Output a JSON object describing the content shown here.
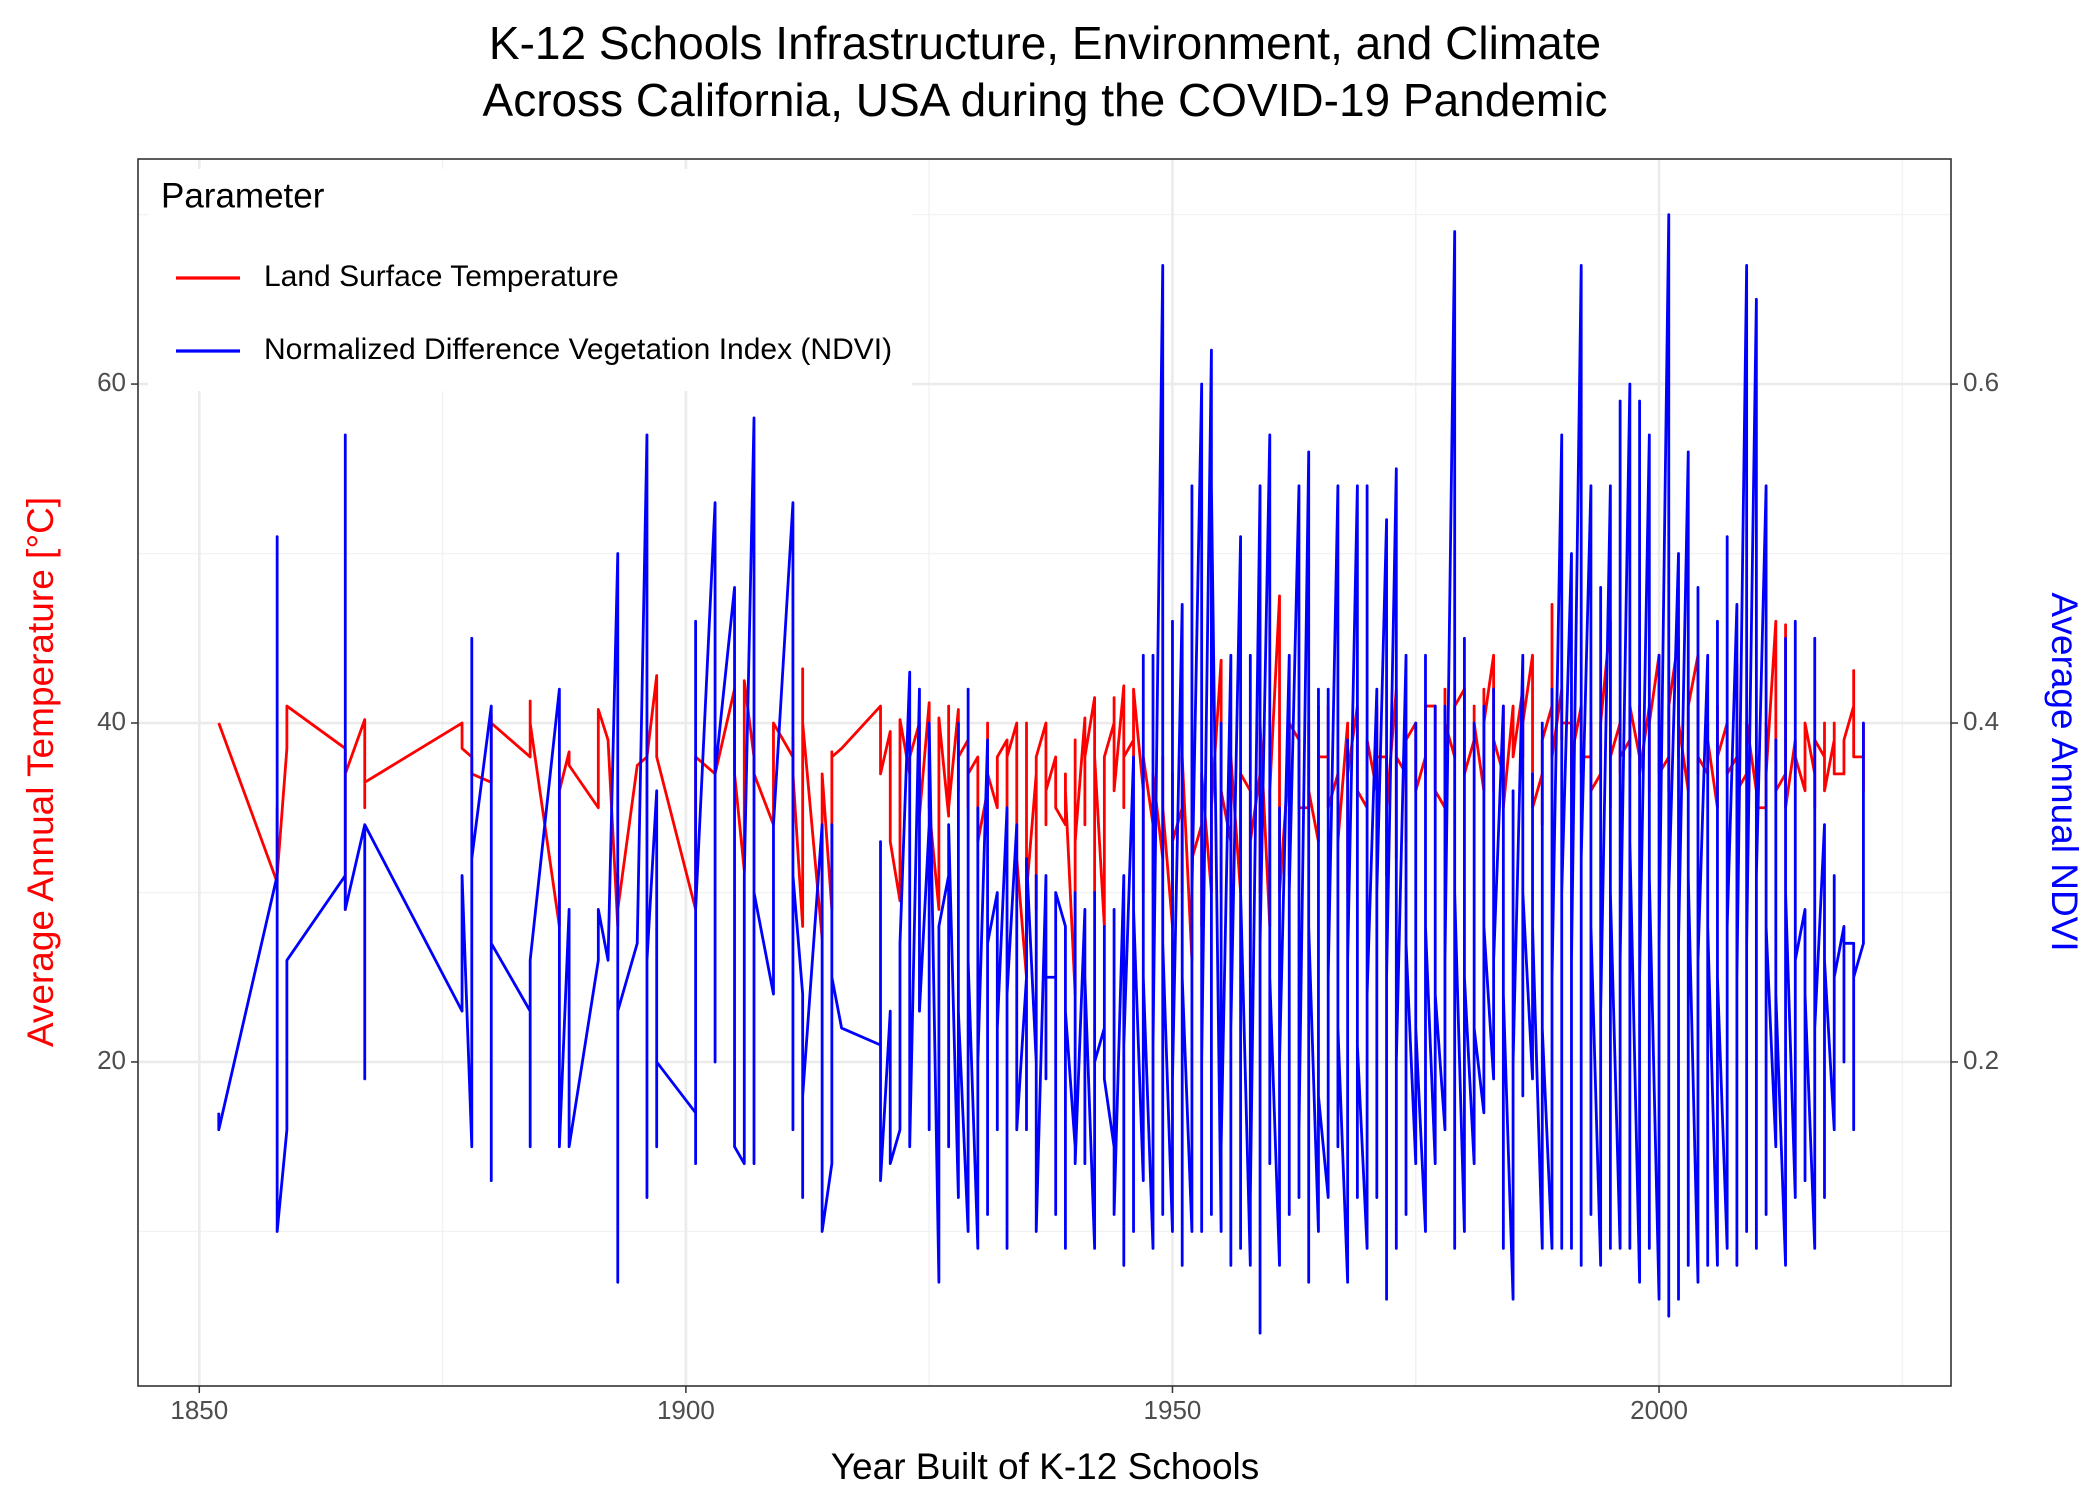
{
  "chart_data": {
    "type": "line",
    "title": [
      "K-12 Schools Infrastructure, Environment, and Climate",
      "Across California, USA during the COVID-19 Pandemic"
    ],
    "x_label": "Year Built of K-12 Schools",
    "y_label": "Average Annual Temperature [°C]",
    "y2_label": "Average Annual NDVI",
    "legend_title": "Parameter",
    "legend_position": "top-left",
    "grid": true,
    "xlim": [
      1843.7,
      2030.0
    ],
    "xticks": [
      1850,
      1900,
      1950,
      2000
    ],
    "x_minor_grid": [
      1875,
      1925,
      1975,
      2025
    ],
    "ylim": [
      0.88,
      73.28
    ],
    "yticks": [
      20,
      40,
      60
    ],
    "y_minor_grid": [
      10,
      30,
      50,
      70
    ],
    "y2lim": [
      0.0088,
      0.7328
    ],
    "y2ticks": [
      0.2,
      0.4,
      0.6
    ],
    "x": [
      1852,
      1852,
      1858,
      1858,
      1858,
      1859,
      1859,
      1865,
      1865,
      1865,
      1867,
      1867,
      1867,
      1877,
      1877,
      1878,
      1878,
      1878,
      1880,
      1880,
      1880,
      1884,
      1884,
      1884,
      1887,
      1887,
      1888,
      1888,
      1891,
      1891,
      1892,
      1893,
      1893,
      1893,
      1895,
      1896,
      1896,
      1896,
      1897,
      1897,
      1897,
      1901,
      1901,
      1901,
      1901,
      1903,
      1903,
      1903,
      1905,
      1905,
      1906,
      1906,
      1907,
      1907,
      1907,
      1909,
      1909,
      1911,
      1911,
      1911,
      1912,
      1912,
      1912,
      1914,
      1914,
      1915,
      1915,
      1915,
      1916,
      1920,
      1920,
      1920,
      1921,
      1921,
      1922,
      1922,
      1923,
      1923,
      1924,
      1924,
      1925,
      1925,
      1925,
      1926,
      1926,
      1927,
      1927,
      1927,
      1928,
      1928,
      1928,
      1929,
      1929,
      1929,
      1930,
      1930,
      1930,
      1931,
      1931,
      1931,
      1932,
      1932,
      1932,
      1933,
      1933,
      1933,
      1934,
      1934,
      1934,
      1935,
      1935,
      1935,
      1936,
      1936,
      1936,
      1937,
      1937,
      1937,
      1938,
      1938,
      1938,
      1939,
      1939,
      1939,
      1940,
      1940,
      1940,
      1941,
      1941,
      1941,
      1942,
      1942,
      1942,
      1943,
      1943,
      1943,
      1944,
      1944,
      1944,
      1945,
      1945,
      1945,
      1946,
      1946,
      1946,
      1947,
      1947,
      1947,
      1948,
      1948,
      1948,
      1949,
      1949,
      1949,
      1950,
      1950,
      1950,
      1951,
      1951,
      1951,
      1952,
      1952,
      1952,
      1953,
      1953,
      1953,
      1954,
      1954,
      1954,
      1955,
      1955,
      1955,
      1956,
      1956,
      1956,
      1957,
      1957,
      1957,
      1958,
      1958,
      1958,
      1959,
      1959,
      1959,
      1960,
      1960,
      1960,
      1961,
      1961,
      1961,
      1962,
      1962,
      1962,
      1963,
      1963,
      1963,
      1964,
      1964,
      1964,
      1965,
      1965,
      1965,
      1966,
      1966,
      1966,
      1967,
      1967,
      1967,
      1968,
      1968,
      1968,
      1969,
      1969,
      1969,
      1970,
      1970,
      1970,
      1971,
      1971,
      1971,
      1972,
      1972,
      1972,
      1973,
      1973,
      1973,
      1974,
      1974,
      1974,
      1975,
      1975,
      1975,
      1976,
      1976,
      1976,
      1977,
      1977,
      1977,
      1978,
      1978,
      1978,
      1979,
      1979,
      1979,
      1980,
      1980,
      1980,
      1981,
      1981,
      1981,
      1982,
      1982,
      1982,
      1983,
      1983,
      1983,
      1984,
      1984,
      1984,
      1985,
      1985,
      1985,
      1986,
      1986,
      1986,
      1987,
      1987,
      1987,
      1988,
      1988,
      1988,
      1989,
      1989,
      1989,
      1990,
      1990,
      1990,
      1991,
      1991,
      1991,
      1992,
      1992,
      1992,
      1993,
      1993,
      1993,
      1994,
      1994,
      1994,
      1995,
      1995,
      1995,
      1996,
      1996,
      1996,
      1997,
      1997,
      1997,
      1998,
      1998,
      1998,
      1999,
      1999,
      1999,
      2000,
      2000,
      2000,
      2001,
      2001,
      2001,
      2002,
      2002,
      2002,
      2003,
      2003,
      2003,
      2004,
      2004,
      2004,
      2005,
      2005,
      2005,
      2006,
      2006,
      2006,
      2007,
      2007,
      2007,
      2008,
      2008,
      2008,
      2009,
      2009,
      2009,
      2010,
      2010,
      2010,
      2011,
      2011,
      2011,
      2012,
      2012,
      2012,
      2013,
      2013,
      2013,
      2014,
      2014,
      2014,
      2015,
      2015,
      2015,
      2016,
      2016,
      2016,
      2017,
      2017,
      2017,
      2018,
      2018,
      2018,
      2019,
      2019,
      2019,
      2020,
      2020,
      2020,
      2021,
      2021,
      2021
    ],
    "series": [
      {
        "name": "Land Surface Temperature",
        "color": "#ff0000",
        "axis": "y",
        "values": [
          40,
          40,
          30.6,
          35,
          31,
          38.5,
          41,
          38.5,
          29,
          37,
          40.2,
          35,
          36.5,
          40,
          38.5,
          38,
          37,
          37,
          36.5,
          40.5,
          40,
          38,
          41.3,
          40,
          28,
          36,
          38.3,
          37.5,
          35,
          40.8,
          39,
          28,
          31,
          29,
          37.5,
          38,
          39,
          38,
          42.8,
          38,
          38,
          29,
          38,
          37,
          38,
          37,
          38.5,
          37,
          42,
          37,
          31.3,
          42.5,
          38,
          37,
          37,
          34,
          40,
          38,
          39,
          37,
          28,
          43.2,
          40,
          27.3,
          37,
          29,
          38.3,
          38,
          38.5,
          41,
          37,
          37,
          39.5,
          33,
          29.5,
          40.2,
          37,
          38,
          40,
          34.5,
          41.2,
          38,
          35,
          29,
          40.3,
          34.5,
          41,
          35,
          40.8,
          36,
          38,
          39,
          35,
          37,
          38,
          36,
          33,
          36,
          40,
          37,
          35,
          37,
          38,
          39,
          34,
          38,
          40,
          35,
          32,
          25,
          40,
          30,
          37,
          29,
          38,
          40,
          34,
          36,
          38,
          36,
          35,
          34,
          37,
          36,
          24,
          39,
          33,
          40.3,
          34,
          38,
          41.5,
          30,
          38,
          28,
          37,
          38,
          40,
          41.5,
          36,
          42.2,
          35,
          38,
          39,
          37,
          42,
          36,
          30,
          38,
          34,
          30,
          37,
          32,
          38,
          35,
          28,
          37,
          33,
          35,
          30,
          38,
          26,
          36,
          32,
          34,
          28,
          37,
          30,
          38,
          35,
          43.7,
          30,
          36,
          33,
          27,
          38,
          30,
          35,
          37,
          36,
          25,
          33,
          37,
          30,
          40,
          28,
          35,
          36,
          47.5,
          33,
          30,
          38,
          31,
          40,
          39,
          35,
          35,
          35,
          40,
          36,
          33,
          41,
          38,
          38,
          41,
          35,
          37,
          35,
          33,
          40,
          30,
          37,
          41,
          38,
          36,
          35,
          37,
          39,
          36,
          41,
          38,
          38,
          31,
          35,
          42,
          32,
          38,
          37,
          33,
          39,
          40,
          38,
          36,
          38,
          37,
          41,
          41,
          39,
          36,
          35,
          42,
          40,
          38,
          39,
          41,
          42,
          38,
          37,
          39,
          41,
          40,
          36,
          42,
          40,
          44,
          36,
          39,
          37,
          41,
          35,
          41,
          39,
          38,
          42,
          38,
          40,
          44,
          40,
          35,
          37,
          34,
          39,
          41,
          47,
          38,
          42,
          39,
          40,
          40,
          36,
          38,
          41,
          37,
          38,
          38,
          40,
          36,
          37,
          39,
          40,
          46,
          35,
          38,
          40,
          37,
          38,
          39,
          38,
          41,
          38,
          41,
          37,
          41,
          36,
          40,
          44,
          38,
          37,
          38,
          36,
          41,
          45,
          38,
          40,
          36,
          39,
          41,
          44,
          37,
          38,
          37,
          40,
          39,
          35,
          41,
          38,
          40,
          38,
          37,
          38,
          43.5,
          36,
          37,
          39,
          40,
          36,
          38,
          35,
          35,
          40,
          37,
          46,
          38,
          36,
          37,
          45.8,
          35,
          39,
          37,
          38,
          36,
          38,
          40,
          37,
          35,
          39,
          38,
          40,
          36,
          39,
          40,
          37,
          37,
          38,
          39,
          41,
          43.1,
          38,
          38,
          36,
          40
        ]
      },
      {
        "name": "Normalized Difference Vegetation Index (NDVI)",
        "color": "#0000ff",
        "axis": "y2",
        "values": [
          0.17,
          0.16,
          0.31,
          0.51,
          0.1,
          0.16,
          0.26,
          0.31,
          0.57,
          0.29,
          0.34,
          0.19,
          0.34,
          0.23,
          0.31,
          0.15,
          0.45,
          0.32,
          0.41,
          0.13,
          0.27,
          0.23,
          0.15,
          0.26,
          0.42,
          0.15,
          0.29,
          0.15,
          0.26,
          0.29,
          0.26,
          0.5,
          0.07,
          0.23,
          0.27,
          0.57,
          0.12,
          0.26,
          0.36,
          0.15,
          0.2,
          0.17,
          0.46,
          0.14,
          0.29,
          0.53,
          0.2,
          0.37,
          0.48,
          0.15,
          0.14,
          0.31,
          0.58,
          0.14,
          0.3,
          0.24,
          0.34,
          0.53,
          0.16,
          0.31,
          0.24,
          0.12,
          0.18,
          0.34,
          0.1,
          0.14,
          0.34,
          0.25,
          0.22,
          0.21,
          0.33,
          0.13,
          0.23,
          0.14,
          0.16,
          0.27,
          0.43,
          0.15,
          0.42,
          0.23,
          0.34,
          0.16,
          0.4,
          0.07,
          0.28,
          0.31,
          0.15,
          0.34,
          0.12,
          0.4,
          0.23,
          0.1,
          0.42,
          0.26,
          0.09,
          0.35,
          0.2,
          0.39,
          0.11,
          0.27,
          0.3,
          0.16,
          0.22,
          0.35,
          0.09,
          0.24,
          0.34,
          0.2,
          0.16,
          0.25,
          0.16,
          0.32,
          0.2,
          0.31,
          0.1,
          0.31,
          0.19,
          0.25,
          0.25,
          0.11,
          0.3,
          0.28,
          0.09,
          0.23,
          0.15,
          0.3,
          0.14,
          0.29,
          0.14,
          0.25,
          0.09,
          0.3,
          0.2,
          0.22,
          0.28,
          0.19,
          0.15,
          0.29,
          0.11,
          0.31,
          0.08,
          0.21,
          0.38,
          0.1,
          0.29,
          0.13,
          0.44,
          0.25,
          0.09,
          0.44,
          0.21,
          0.67,
          0.11,
          0.27,
          0.1,
          0.46,
          0.19,
          0.47,
          0.08,
          0.25,
          0.1,
          0.54,
          0.3,
          0.6,
          0.1,
          0.2,
          0.62,
          0.11,
          0.54,
          0.1,
          0.4,
          0.15,
          0.44,
          0.08,
          0.22,
          0.51,
          0.09,
          0.3,
          0.08,
          0.44,
          0.12,
          0.54,
          0.04,
          0.27,
          0.57,
          0.14,
          0.25,
          0.08,
          0.35,
          0.2,
          0.44,
          0.11,
          0.3,
          0.54,
          0.12,
          0.16,
          0.56,
          0.07,
          0.28,
          0.1,
          0.42,
          0.18,
          0.12,
          0.42,
          0.25,
          0.54,
          0.15,
          0.22,
          0.07,
          0.39,
          0.26,
          0.54,
          0.12,
          0.21,
          0.09,
          0.54,
          0.24,
          0.42,
          0.12,
          0.3,
          0.52,
          0.06,
          0.25,
          0.55,
          0.09,
          0.2,
          0.44,
          0.11,
          0.27,
          0.14,
          0.4,
          0.22,
          0.1,
          0.44,
          0.28,
          0.14,
          0.41,
          0.24,
          0.16,
          0.41,
          0.26,
          0.69,
          0.09,
          0.3,
          0.1,
          0.45,
          0.25,
          0.14,
          0.4,
          0.22,
          0.17,
          0.41,
          0.28,
          0.19,
          0.42,
          0.26,
          0.41,
          0.09,
          0.24,
          0.06,
          0.36,
          0.2,
          0.44,
          0.18,
          0.3,
          0.19,
          0.37,
          0.28,
          0.09,
          0.4,
          0.22,
          0.09,
          0.42,
          0.25,
          0.57,
          0.09,
          0.3,
          0.5,
          0.09,
          0.26,
          0.67,
          0.08,
          0.32,
          0.54,
          0.11,
          0.28,
          0.08,
          0.48,
          0.23,
          0.54,
          0.09,
          0.3,
          0.09,
          0.59,
          0.26,
          0.6,
          0.09,
          0.33,
          0.07,
          0.59,
          0.25,
          0.57,
          0.09,
          0.31,
          0.06,
          0.44,
          0.27,
          0.7,
          0.05,
          0.3,
          0.5,
          0.06,
          0.27,
          0.56,
          0.08,
          0.31,
          0.07,
          0.48,
          0.26,
          0.44,
          0.08,
          0.28,
          0.08,
          0.46,
          0.25,
          0.09,
          0.51,
          0.28,
          0.47,
          0.08,
          0.25,
          0.67,
          0.1,
          0.27,
          0.65,
          0.09,
          0.31,
          0.54,
          0.11,
          0.28,
          0.15,
          0.39,
          0.24,
          0.08,
          0.45,
          0.3,
          0.12,
          0.46,
          0.26,
          0.29,
          0.13,
          0.24,
          0.09,
          0.45,
          0.22,
          0.34,
          0.12,
          0.26,
          0.16,
          0.31,
          0.25,
          0.28,
          0.2,
          0.27,
          0.27,
          0.16,
          0.25,
          0.27,
          0.4,
          0.3
        ]
      }
    ]
  }
}
